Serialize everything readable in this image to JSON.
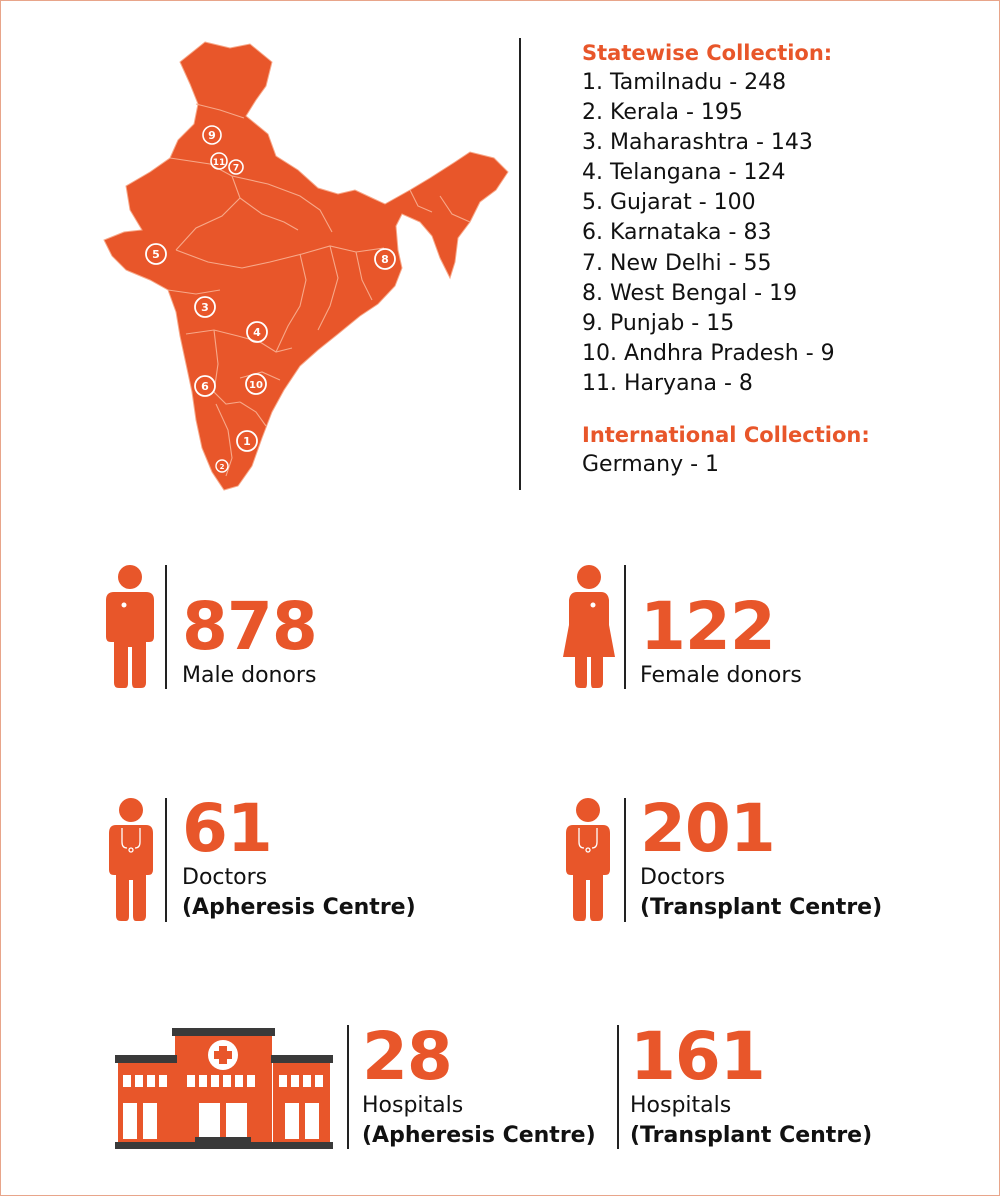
{
  "map": {
    "markers": [
      "1",
      "2",
      "3",
      "4",
      "5",
      "6",
      "7",
      "8",
      "9",
      "10",
      "11"
    ]
  },
  "statewise": {
    "title": "Statewise Collection:",
    "items": [
      "1. Tamilnadu - 248",
      "2. Kerala - 195",
      "3. Maharashtra - 143",
      "4. Telangana - 124",
      "5. Gujarat - 100",
      "6. Karnataka - 83",
      "7. New Delhi - 55",
      "8. West Bengal - 19",
      "9. Punjab - 15",
      "10. Andhra Pradesh - 9",
      "11. Haryana - 8"
    ]
  },
  "international": {
    "title": "International Collection:",
    "items": [
      "Germany - 1"
    ]
  },
  "stats": {
    "male": {
      "value": "878",
      "label": "Male donors"
    },
    "female": {
      "value": "122",
      "label": "Female donors"
    },
    "doctors_apheresis": {
      "value": "61",
      "label": "Doctors",
      "sub": "(Apheresis Centre)"
    },
    "doctors_transplant": {
      "value": "201",
      "label": "Doctors",
      "sub": "(Transplant Centre)"
    },
    "hospitals_apheresis": {
      "value": "28",
      "label": "Hospitals",
      "sub": "(Apheresis Centre)"
    },
    "hospitals_transplant": {
      "value": "161",
      "label": "Hospitals",
      "sub": "(Transplant Centre)"
    }
  },
  "colors": {
    "accent": "#e8562a",
    "text": "#111111",
    "divider": "#222222"
  }
}
